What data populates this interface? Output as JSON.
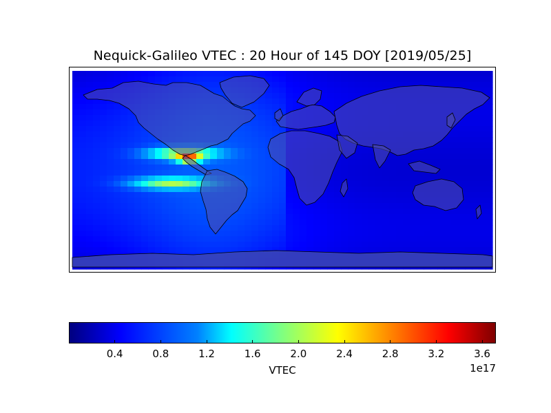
{
  "title": "Nequick-Galileo VTEC : 20 Hour of 145 DOY [2019/05/25]",
  "colors": {
    "background_low": "#0a14e6",
    "land_tint": "#4d4db3",
    "coast": "#000000",
    "antarctica": "#2f3aa8"
  },
  "map": {
    "type": "heatmap",
    "projection": "equirectangular",
    "domain": "world",
    "region_of_max": "Central America / Caribbean",
    "max_value": 3.7e+17
  },
  "colorbar": {
    "label": "VTEC",
    "exponent": "1e17",
    "min": 0.0,
    "max": 3.72,
    "colormap": "jet",
    "ticks": [
      {
        "value": 0.4,
        "text": "0.4"
      },
      {
        "value": 0.8,
        "text": "0.8"
      },
      {
        "value": 1.2,
        "text": "1.2"
      },
      {
        "value": 1.6,
        "text": "1.6"
      },
      {
        "value": 2.0,
        "text": "2.0"
      },
      {
        "value": 2.4,
        "text": "2.4"
      },
      {
        "value": 2.8,
        "text": "2.8"
      },
      {
        "value": 3.2,
        "text": "3.2"
      },
      {
        "value": 3.6,
        "text": "3.6"
      }
    ]
  }
}
